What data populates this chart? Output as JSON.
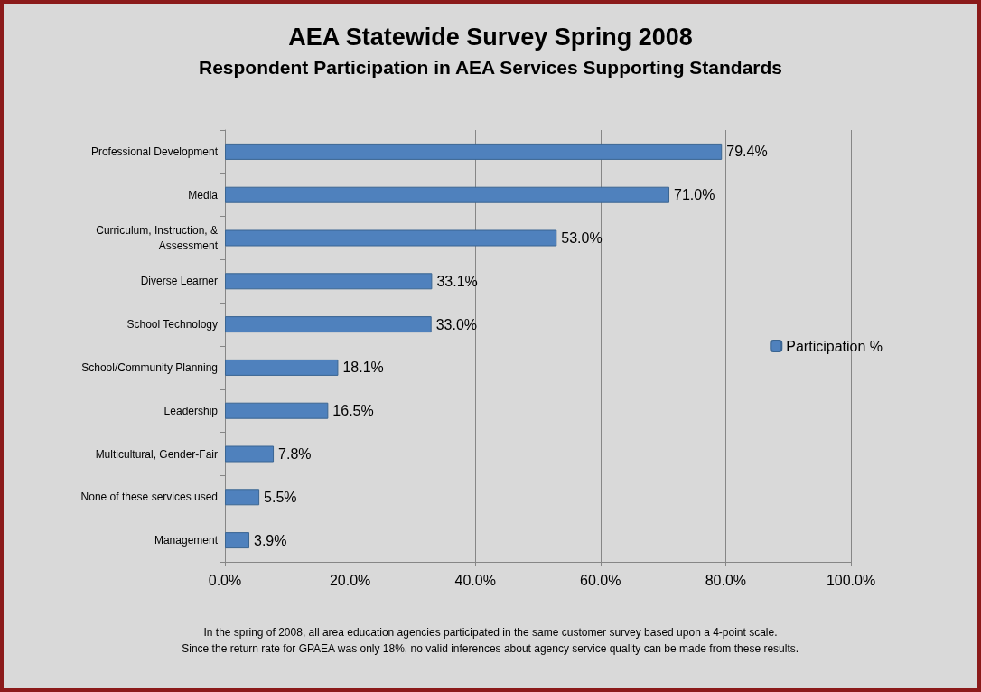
{
  "chart_data": {
    "type": "bar",
    "orientation": "horizontal",
    "title": "AEA Statewide Survey Spring 2008",
    "subtitle": "Respondent Participation in AEA Services Supporting Standards",
    "categories": [
      "Professional Development",
      "Media",
      "Curriculum, Instruction, &\nAssessment",
      "Diverse Learner",
      "School Technology",
      "School/Community Planning",
      "Leadership",
      "Multicultural, Gender-Fair",
      "None of these services used",
      "Management"
    ],
    "series": [
      {
        "name": "Participation %",
        "color": "#4f81bd",
        "values": [
          79.4,
          71.0,
          53.0,
          33.1,
          33.0,
          18.1,
          16.5,
          7.8,
          5.5,
          3.9
        ],
        "value_labels": [
          "79.4%",
          "71.0%",
          "53.0%",
          "33.1%",
          "33.0%",
          "18.1%",
          "16.5%",
          "7.8%",
          "5.5%",
          "3.9%"
        ]
      }
    ],
    "xlim": [
      0,
      100
    ],
    "xticks": [
      {
        "value": 0,
        "label": "0.0%"
      },
      {
        "value": 20,
        "label": "20.0%"
      },
      {
        "value": 40,
        "label": "40.0%"
      },
      {
        "value": 60,
        "label": "60.0%"
      },
      {
        "value": 80,
        "label": "80.0%"
      },
      {
        "value": 100,
        "label": "100.0%"
      }
    ],
    "grid": "x",
    "legend": "right",
    "annotations": [
      "In the spring of 2008, all area education agencies participated in the same customer survey based upon a 4-point scale.",
      "Since the return rate for GPAEA was only 18%, no valid inferences about agency service quality can be made from these results."
    ]
  }
}
